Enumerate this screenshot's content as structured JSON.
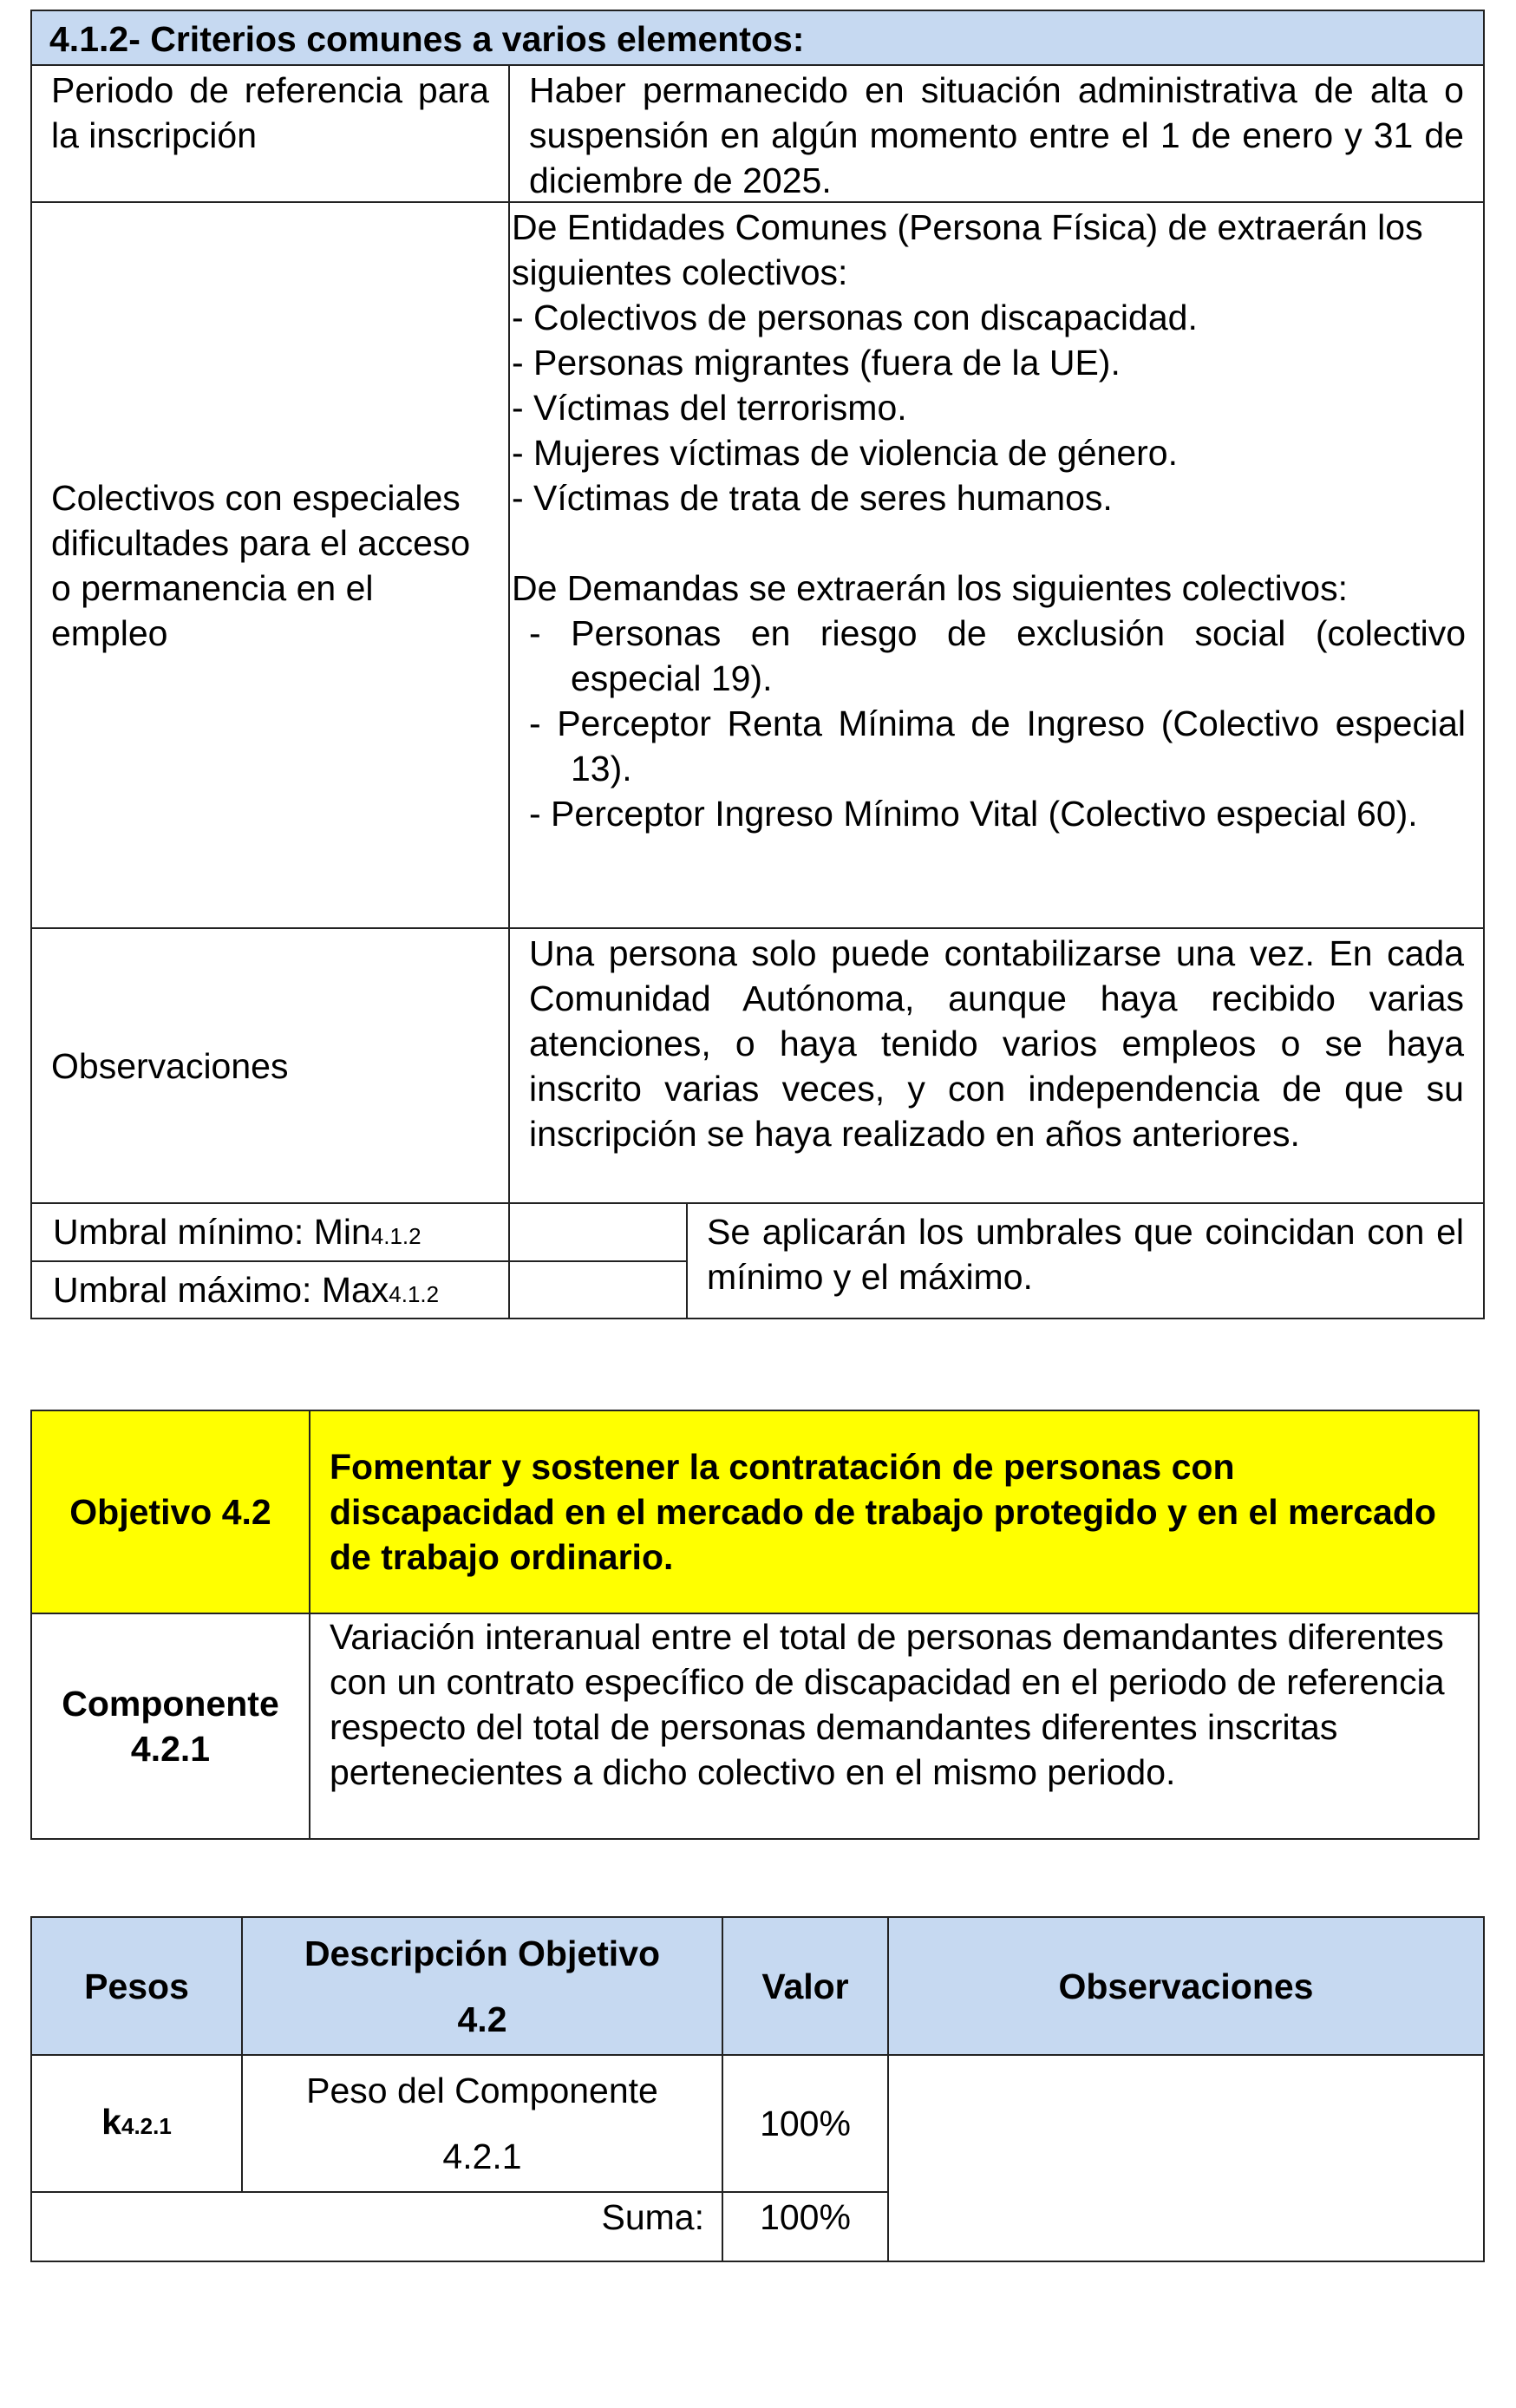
{
  "section1": {
    "title": "4.1.2- Criterios comunes a varios elementos:",
    "period_label": "Periodo de referencia para la inscripción",
    "period_value": "Haber permanecido en situación administrativa de alta o suspensión en algún momento entre el 1 de enero y 31 de diciembre de 2025.",
    "groups_label": "Colectivos con especiales dificultades para el acceso o permanencia en el empleo",
    "groups_intro1": "De Entidades Comunes (Persona Física) de extraerán los siguientes colectivos:",
    "groups_list1": [
      "Colectivos de personas con discapacidad.",
      "Personas migrantes (fuera de la UE).",
      "Víctimas del terrorismo.",
      "Mujeres víctimas de violencia de género.",
      "Víctimas de trata de seres humanos."
    ],
    "groups_intro2": "De Demandas se extraerán los siguientes colectivos:",
    "groups_list2": [
      "Personas en riesgo de exclusión social (colectivo especial 19).",
      "Perceptor Renta Mínima de Ingreso (Colectivo especial 13).",
      "Perceptor Ingreso Mínimo Vital (Colectivo especial 60)."
    ],
    "obs_label": "Observaciones",
    "obs_value": "Una persona solo puede contabilizarse una vez. En cada Comunidad Autónoma, aunque haya recibido varias atenciones, o haya tenido varios empleos o se haya inscrito varias veces, y con independencia de que su inscripción se haya realizado en años anteriores.",
    "min_label": "Umbral mínimo: Min",
    "min_sub": "4.1.2",
    "max_label": "Umbral máximo: Max",
    "max_sub": "4.1.2",
    "threshold_note": "Se aplicarán los umbrales que coincidan con el mínimo y el máximo."
  },
  "objective": {
    "label": "Objetivo 4.2",
    "title": "Fomentar y sostener la contratación de personas con discapacidad en el mercado de trabajo protegido y en el mercado de trabajo ordinario.",
    "component_label": "Componente 4.2.1",
    "component_desc": "Variación interanual entre el total de personas demandantes diferentes con un contrato específico de discapacidad en el periodo de referencia respecto del total de personas demandantes diferentes inscritas pertenecientes a dicho colectivo en el mismo periodo."
  },
  "weights": {
    "headers": [
      "Pesos",
      "Descripción Objetivo 4.2",
      "Valor",
      "Observaciones"
    ],
    "k_label": "k",
    "k_sub": "4.2.1",
    "row_desc": "Peso del Componente 4.2.1",
    "row_value": "100%",
    "sum_label": "Suma:",
    "sum_value": "100%"
  },
  "colors": {
    "header_blue": "#c6d9f1",
    "objective_yellow": "#ffff00"
  }
}
